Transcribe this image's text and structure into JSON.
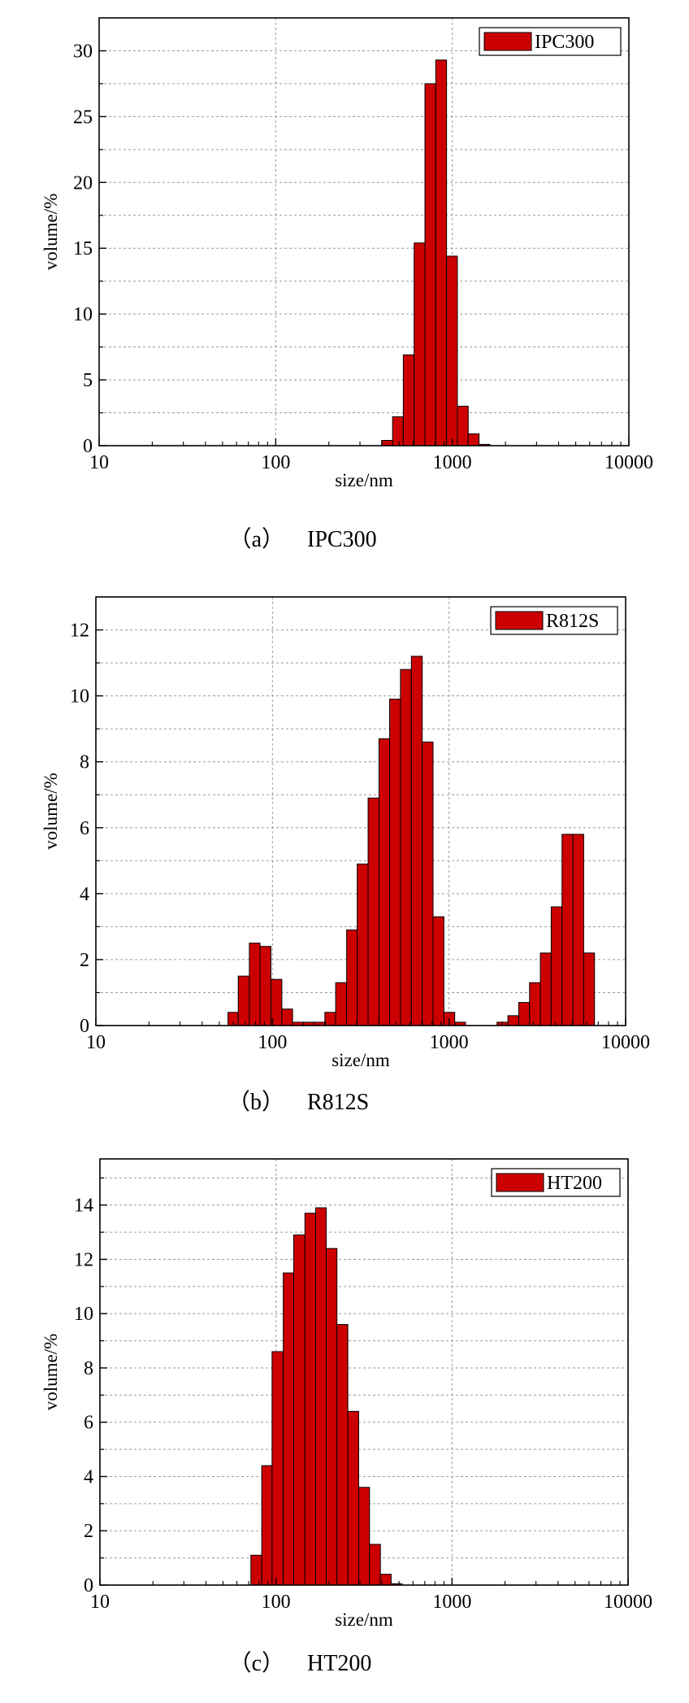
{
  "chart_data": [
    {
      "type": "bar",
      "caption_label": "（a）",
      "caption_name": "IPC300",
      "legend": "IPC300",
      "xlabel": "size/nm",
      "ylabel": "volume/%",
      "xscale": "log",
      "xlim": [
        10,
        10000
      ],
      "ylim": [
        0,
        32.5
      ],
      "x_ticks": [
        "10",
        "100",
        "1000",
        "10000"
      ],
      "y_ticks": [
        0,
        5,
        10,
        15,
        20,
        25,
        30
      ],
      "y_minor_step": 2.5,
      "grid": true,
      "legend_position": "top-right",
      "bar_color": "#cc0000",
      "bins": [
        {
          "from": 398,
          "to": 459,
          "value": 0.4
        },
        {
          "from": 459,
          "to": 528,
          "value": 2.2
        },
        {
          "from": 528,
          "to": 608,
          "value": 6.9
        },
        {
          "from": 608,
          "to": 700,
          "value": 15.4
        },
        {
          "from": 700,
          "to": 806,
          "value": 27.5
        },
        {
          "from": 806,
          "to": 928,
          "value": 29.3
        },
        {
          "from": 928,
          "to": 1069,
          "value": 14.4
        },
        {
          "from": 1069,
          "to": 1231,
          "value": 3.0
        },
        {
          "from": 1231,
          "to": 1418,
          "value": 0.9
        },
        {
          "from": 1418,
          "to": 1633,
          "value": 0.1
        }
      ]
    },
    {
      "type": "bar",
      "caption_label": "（b）",
      "caption_name": "R812S",
      "legend": "R812S",
      "xlabel": "size/nm",
      "ylabel": "volume/%",
      "xscale": "log",
      "xlim": [
        10,
        10000
      ],
      "ylim": [
        0,
        13
      ],
      "x_ticks": [
        "10",
        "100",
        "1000",
        "10000"
      ],
      "y_ticks": [
        0,
        2,
        4,
        6,
        8,
        10,
        12
      ],
      "y_minor_step": 1,
      "grid": true,
      "legend_position": "top-right",
      "bar_color": "#cc0000",
      "bins": [
        {
          "from": 56,
          "to": 64,
          "value": 0.4
        },
        {
          "from": 64,
          "to": 74,
          "value": 1.5
        },
        {
          "from": 74,
          "to": 85,
          "value": 2.5
        },
        {
          "from": 85,
          "to": 98,
          "value": 2.4
        },
        {
          "from": 98,
          "to": 113,
          "value": 1.4
        },
        {
          "from": 113,
          "to": 130,
          "value": 0.5
        },
        {
          "from": 130,
          "to": 150,
          "value": 0.1
        },
        {
          "from": 150,
          "to": 172,
          "value": 0.1
        },
        {
          "from": 172,
          "to": 198,
          "value": 0.1
        },
        {
          "from": 198,
          "to": 228,
          "value": 0.4
        },
        {
          "from": 228,
          "to": 263,
          "value": 1.3
        },
        {
          "from": 263,
          "to": 302,
          "value": 2.9
        },
        {
          "from": 302,
          "to": 348,
          "value": 4.9
        },
        {
          "from": 348,
          "to": 401,
          "value": 6.9
        },
        {
          "from": 401,
          "to": 461,
          "value": 8.7
        },
        {
          "from": 461,
          "to": 531,
          "value": 9.9
        },
        {
          "from": 531,
          "to": 612,
          "value": 10.8
        },
        {
          "from": 612,
          "to": 705,
          "value": 11.2
        },
        {
          "from": 705,
          "to": 812,
          "value": 8.6
        },
        {
          "from": 812,
          "to": 935,
          "value": 3.3
        },
        {
          "from": 935,
          "to": 1077,
          "value": 0.4
        },
        {
          "from": 1077,
          "to": 1240,
          "value": 0.1
        },
        {
          "from": 1870,
          "to": 2154,
          "value": 0.1
        },
        {
          "from": 2154,
          "to": 2480,
          "value": 0.3
        },
        {
          "from": 2480,
          "to": 2857,
          "value": 0.7
        },
        {
          "from": 2857,
          "to": 3290,
          "value": 1.3
        },
        {
          "from": 3290,
          "to": 3789,
          "value": 2.2
        },
        {
          "from": 3789,
          "to": 4364,
          "value": 3.6
        },
        {
          "from": 4364,
          "to": 5026,
          "value": 5.8
        },
        {
          "from": 5026,
          "to": 5788,
          "value": 5.8
        },
        {
          "from": 5788,
          "to": 6666,
          "value": 2.2
        }
      ]
    },
    {
      "type": "bar",
      "caption_label": "（c）",
      "caption_name": "HT200",
      "legend": "HT200",
      "xlabel": "size/nm",
      "ylabel": "volume/%",
      "xscale": "log",
      "xlim": [
        10,
        10000
      ],
      "ylim": [
        0,
        15.7
      ],
      "x_ticks": [
        "10",
        "100",
        "1000",
        "10000"
      ],
      "y_ticks": [
        0,
        2,
        4,
        6,
        8,
        10,
        12,
        14
      ],
      "y_minor_step": 1,
      "grid": true,
      "legend_position": "top-right",
      "bar_color": "#cc0000",
      "bins": [
        {
          "from": 72,
          "to": 83,
          "value": 1.1
        },
        {
          "from": 83,
          "to": 95,
          "value": 4.4
        },
        {
          "from": 95,
          "to": 110,
          "value": 8.6
        },
        {
          "from": 110,
          "to": 126,
          "value": 11.5
        },
        {
          "from": 126,
          "to": 146,
          "value": 12.9
        },
        {
          "from": 146,
          "to": 168,
          "value": 13.7
        },
        {
          "from": 168,
          "to": 193,
          "value": 13.9
        },
        {
          "from": 193,
          "to": 222,
          "value": 12.4
        },
        {
          "from": 222,
          "to": 256,
          "value": 9.6
        },
        {
          "from": 256,
          "to": 295,
          "value": 6.4
        },
        {
          "from": 295,
          "to": 340,
          "value": 3.6
        },
        {
          "from": 340,
          "to": 392,
          "value": 1.5
        },
        {
          "from": 392,
          "to": 451,
          "value": 0.4
        },
        {
          "from": 451,
          "to": 520,
          "value": 0.05
        }
      ]
    }
  ]
}
